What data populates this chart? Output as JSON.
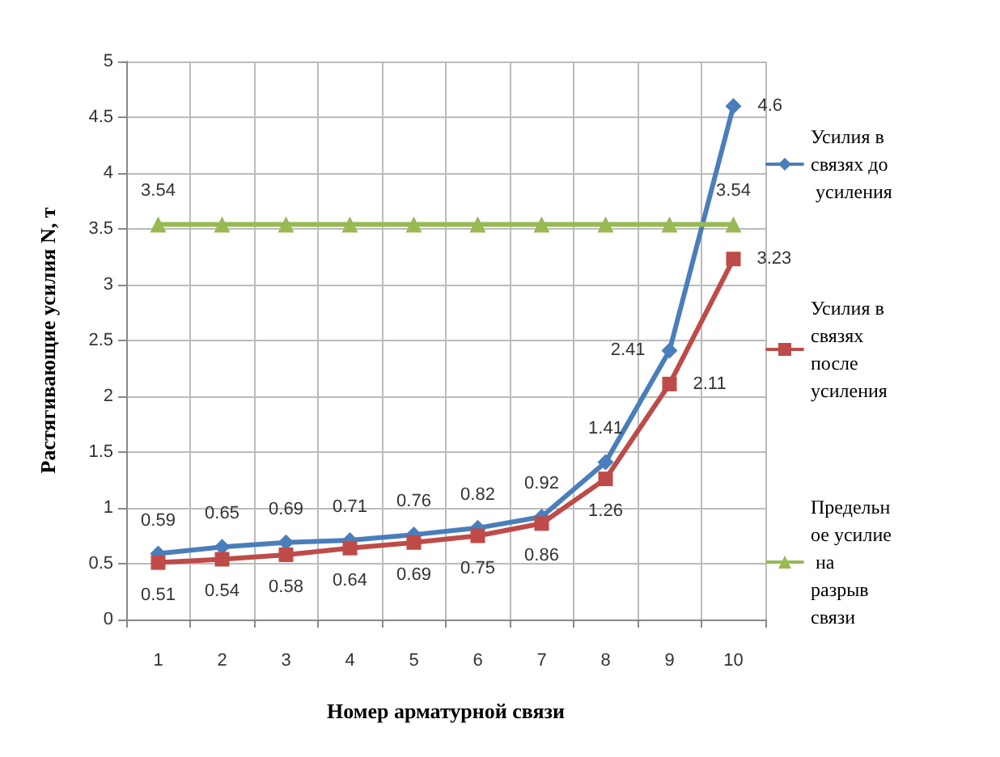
{
  "chart_data": {
    "type": "line",
    "xlabel": "Номер арматурной связи",
    "ylabel": "Растягивающие усилия N, т",
    "categories": [
      "1",
      "2",
      "3",
      "4",
      "5",
      "6",
      "7",
      "8",
      "9",
      "10"
    ],
    "series": [
      {
        "name": "Усилия в связях до усиления",
        "color": "#4a7ebb",
        "marker": "diamond",
        "values": [
          0.59,
          0.65,
          0.69,
          0.71,
          0.76,
          0.82,
          0.92,
          1.41,
          2.41,
          4.6
        ],
        "value_labels": [
          "0.59",
          "0.65",
          "0.69",
          "0.71",
          "0.76",
          "0.82",
          "0.92",
          "1.41",
          "2.41",
          "4.6"
        ]
      },
      {
        "name": "Усилия в связях после усиления",
        "color": "#be4b48",
        "marker": "square",
        "values": [
          0.51,
          0.54,
          0.58,
          0.64,
          0.69,
          0.75,
          0.86,
          1.26,
          2.11,
          3.23
        ],
        "value_labels": [
          "0.51",
          "0.54",
          "0.58",
          "0.64",
          "0.69",
          "0.75",
          "0.86",
          "1.26",
          "2.11",
          "3.23"
        ]
      },
      {
        "name": "Предельное усилие на разрыв связи",
        "color": "#98b954",
        "marker": "triangle",
        "values": [
          3.54,
          3.54,
          3.54,
          3.54,
          3.54,
          3.54,
          3.54,
          3.54,
          3.54,
          3.54
        ],
        "value_labels": [
          "3.54",
          null,
          null,
          null,
          null,
          null,
          null,
          null,
          null,
          "3.54"
        ]
      }
    ],
    "ylim": [
      0,
      5
    ],
    "yticks": [
      0,
      0.5,
      1,
      1.5,
      2,
      2.5,
      3,
      3.5,
      4,
      4.5,
      5
    ],
    "grid": true,
    "legend": "right",
    "line_style": "solid"
  }
}
